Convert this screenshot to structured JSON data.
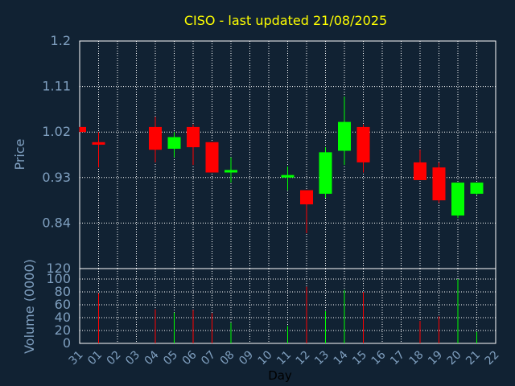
{
  "chart_data": {
    "type": "candlestick",
    "title": "CISO - last updated 21/08/2025",
    "xlabel": "Day",
    "ylabel_price": "Price",
    "ylabel_volume": "Volume (0000)",
    "x_ticks": [
      "31",
      "01",
      "02",
      "03",
      "04",
      "05",
      "06",
      "07",
      "08",
      "09",
      "10",
      "11",
      "12",
      "13",
      "14",
      "15",
      "16",
      "17",
      "18",
      "19",
      "20",
      "21",
      "22"
    ],
    "price_ticks": [
      "1.2",
      "1.11",
      "1.02",
      "0.93",
      "0.84"
    ],
    "price_range": [
      0.75,
      1.2
    ],
    "volume_ticks": [
      "120",
      "100",
      "80",
      "60",
      "40",
      "20",
      "0"
    ],
    "volume_range": [
      0,
      120
    ],
    "grid": true,
    "colors": {
      "up": "#00ff00",
      "down": "#ff0000",
      "title": "#ffff00",
      "axis_text": "#7f9fbf",
      "grid": "#ffffff",
      "background": "#112233"
    },
    "candles": [
      {
        "x": "31",
        "open": 1.03,
        "close": 1.02,
        "high": 1.03,
        "low": 1.02
      },
      {
        "x": "01",
        "open": 1.0,
        "close": 0.995,
        "high": 1.02,
        "low": 0.95
      },
      {
        "x": "04",
        "open": 1.03,
        "close": 0.985,
        "high": 1.05,
        "low": 0.96
      },
      {
        "x": "05",
        "open": 0.987,
        "close": 1.01,
        "high": 1.02,
        "low": 0.97
      },
      {
        "x": "06",
        "open": 1.03,
        "close": 0.99,
        "high": 1.035,
        "low": 0.955
      },
      {
        "x": "07",
        "open": 1.0,
        "close": 0.94,
        "high": 1.0,
        "low": 0.94
      },
      {
        "x": "08",
        "open": 0.94,
        "close": 0.945,
        "high": 0.97,
        "low": 0.92
      },
      {
        "x": "11",
        "open": 0.93,
        "close": 0.935,
        "high": 0.952,
        "low": 0.905
      },
      {
        "x": "12",
        "open": 0.905,
        "close": 0.877,
        "high": 0.905,
        "low": 0.82
      },
      {
        "x": "13",
        "open": 0.898,
        "close": 0.98,
        "high": 0.99,
        "low": 0.89
      },
      {
        "x": "14",
        "open": 0.983,
        "close": 1.04,
        "high": 1.09,
        "low": 0.955
      },
      {
        "x": "15",
        "open": 1.03,
        "close": 0.96,
        "high": 1.035,
        "low": 0.94
      },
      {
        "x": "18",
        "open": 0.96,
        "close": 0.925,
        "high": 0.985,
        "low": 0.925
      },
      {
        "x": "19",
        "open": 0.95,
        "close": 0.885,
        "high": 0.96,
        "low": 0.88
      },
      {
        "x": "20",
        "open": 0.855,
        "close": 0.92,
        "high": 0.92,
        "low": 0.85
      },
      {
        "x": "21",
        "open": 0.898,
        "close": 0.92,
        "high": 0.92,
        "low": 0.895
      }
    ],
    "volume": [
      {
        "x": "01",
        "value": 78,
        "dir": "down"
      },
      {
        "x": "04",
        "value": 53,
        "dir": "down"
      },
      {
        "x": "05",
        "value": 48,
        "dir": "up"
      },
      {
        "x": "06",
        "value": 52,
        "dir": "down"
      },
      {
        "x": "07",
        "value": 47,
        "dir": "down"
      },
      {
        "x": "08",
        "value": 32,
        "dir": "up"
      },
      {
        "x": "11",
        "value": 27,
        "dir": "up"
      },
      {
        "x": "12",
        "value": 88,
        "dir": "down"
      },
      {
        "x": "13",
        "value": 50,
        "dir": "up"
      },
      {
        "x": "14",
        "value": 83,
        "dir": "up"
      },
      {
        "x": "15",
        "value": 80,
        "dir": "down"
      },
      {
        "x": "18",
        "value": 35,
        "dir": "down"
      },
      {
        "x": "19",
        "value": 42,
        "dir": "down"
      },
      {
        "x": "20",
        "value": 100,
        "dir": "up"
      },
      {
        "x": "21",
        "value": 18,
        "dir": "up"
      }
    ]
  }
}
